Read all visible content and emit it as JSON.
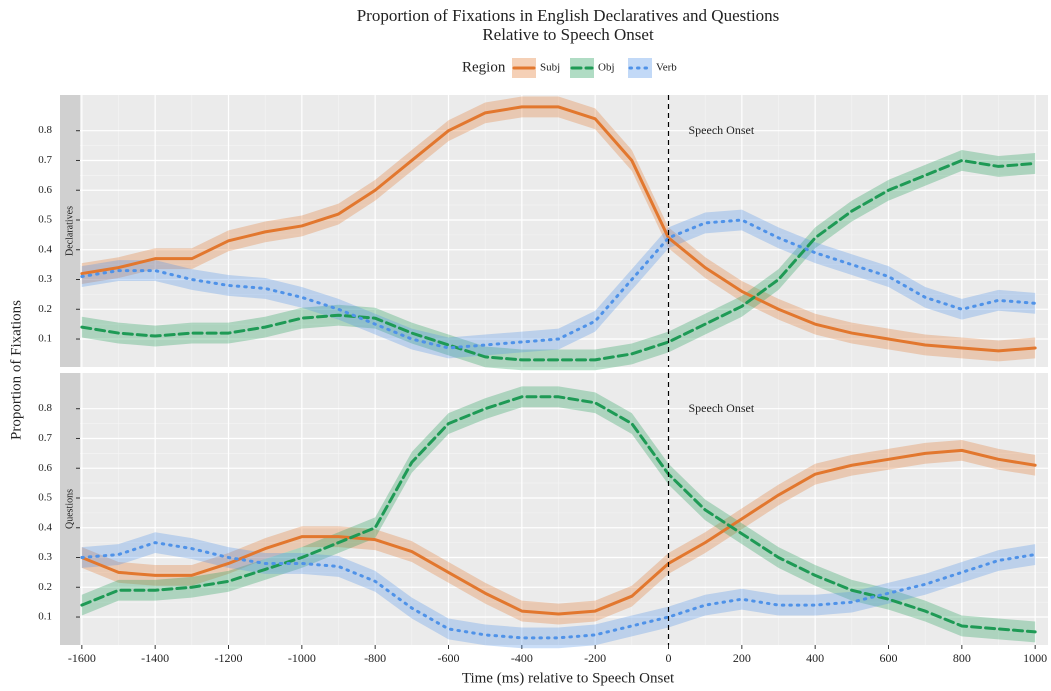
{
  "chart_data": {
    "type": "line",
    "title": "Proportion of Fixations in English Declaratives and Questions",
    "subtitle": "Relative to Speech Onset",
    "legend_title": "Region",
    "x_label": "Time (ms) relative to Speech Onset",
    "y_label": "Proportion of Fixations",
    "annotation": "Speech Onset",
    "vline": 0,
    "ribbon": 0.035,
    "grid": true,
    "xlim": [
      -1605,
      1035
    ],
    "xticks": [
      -1600,
      -1400,
      -1200,
      -1000,
      -800,
      -600,
      -400,
      -200,
      0,
      200,
      400,
      600,
      800,
      1000
    ],
    "ylim": [
      0.006,
      0.92
    ],
    "yticks": [
      0.1,
      0.2,
      0.3,
      0.4,
      0.5,
      0.6,
      0.7,
      0.8
    ],
    "x": [
      -1600,
      -1500,
      -1400,
      -1300,
      -1200,
      -1100,
      -1000,
      -900,
      -800,
      -700,
      -600,
      -500,
      -400,
      -300,
      -200,
      -100,
      0,
      100,
      200,
      300,
      400,
      500,
      600,
      700,
      800,
      900,
      1000
    ],
    "facets": [
      {
        "name": "Declaratives",
        "series": [
          {
            "name": "Subj",
            "color": "#e2772e",
            "linestyle": "solid",
            "values": [
              0.32,
              0.34,
              0.37,
              0.37,
              0.43,
              0.46,
              0.48,
              0.52,
              0.6,
              0.7,
              0.8,
              0.86,
              0.88,
              0.88,
              0.84,
              0.7,
              0.44,
              0.34,
              0.26,
              0.2,
              0.15,
              0.12,
              0.1,
              0.08,
              0.07,
              0.06,
              0.07
            ]
          },
          {
            "name": "Obj",
            "color": "#1e9a55",
            "linestyle": "dashed",
            "values": [
              0.14,
              0.12,
              0.11,
              0.12,
              0.12,
              0.14,
              0.17,
              0.18,
              0.17,
              0.12,
              0.08,
              0.04,
              0.03,
              0.03,
              0.03,
              0.05,
              0.09,
              0.15,
              0.21,
              0.3,
              0.44,
              0.53,
              0.6,
              0.65,
              0.7,
              0.68,
              0.69
            ]
          },
          {
            "name": "Verb",
            "color": "#4f92e8",
            "linestyle": "dotted",
            "values": [
              0.31,
              0.33,
              0.33,
              0.3,
              0.28,
              0.27,
              0.24,
              0.2,
              0.15,
              0.1,
              0.07,
              0.08,
              0.09,
              0.1,
              0.16,
              0.3,
              0.44,
              0.49,
              0.5,
              0.44,
              0.39,
              0.35,
              0.31,
              0.24,
              0.2,
              0.23,
              0.22
            ]
          }
        ]
      },
      {
        "name": "Questions",
        "series": [
          {
            "name": "Subj",
            "color": "#e2772e",
            "linestyle": "solid",
            "values": [
              0.3,
              0.25,
              0.24,
              0.24,
              0.28,
              0.33,
              0.37,
              0.37,
              0.36,
              0.32,
              0.25,
              0.18,
              0.12,
              0.11,
              0.12,
              0.17,
              0.28,
              0.35,
              0.43,
              0.51,
              0.58,
              0.61,
              0.63,
              0.65,
              0.66,
              0.63,
              0.61
            ]
          },
          {
            "name": "Obj",
            "color": "#1e9a55",
            "linestyle": "dashed",
            "values": [
              0.14,
              0.19,
              0.19,
              0.2,
              0.22,
              0.26,
              0.3,
              0.35,
              0.4,
              0.62,
              0.75,
              0.8,
              0.84,
              0.84,
              0.82,
              0.75,
              0.58,
              0.46,
              0.38,
              0.3,
              0.24,
              0.19,
              0.16,
              0.12,
              0.07,
              0.06,
              0.05
            ]
          },
          {
            "name": "Verb",
            "color": "#4f92e8",
            "linestyle": "dotted",
            "values": [
              0.3,
              0.31,
              0.35,
              0.33,
              0.3,
              0.28,
              0.28,
              0.27,
              0.22,
              0.13,
              0.06,
              0.04,
              0.03,
              0.03,
              0.04,
              0.07,
              0.1,
              0.14,
              0.16,
              0.14,
              0.14,
              0.15,
              0.18,
              0.21,
              0.25,
              0.29,
              0.31
            ]
          }
        ]
      }
    ]
  }
}
